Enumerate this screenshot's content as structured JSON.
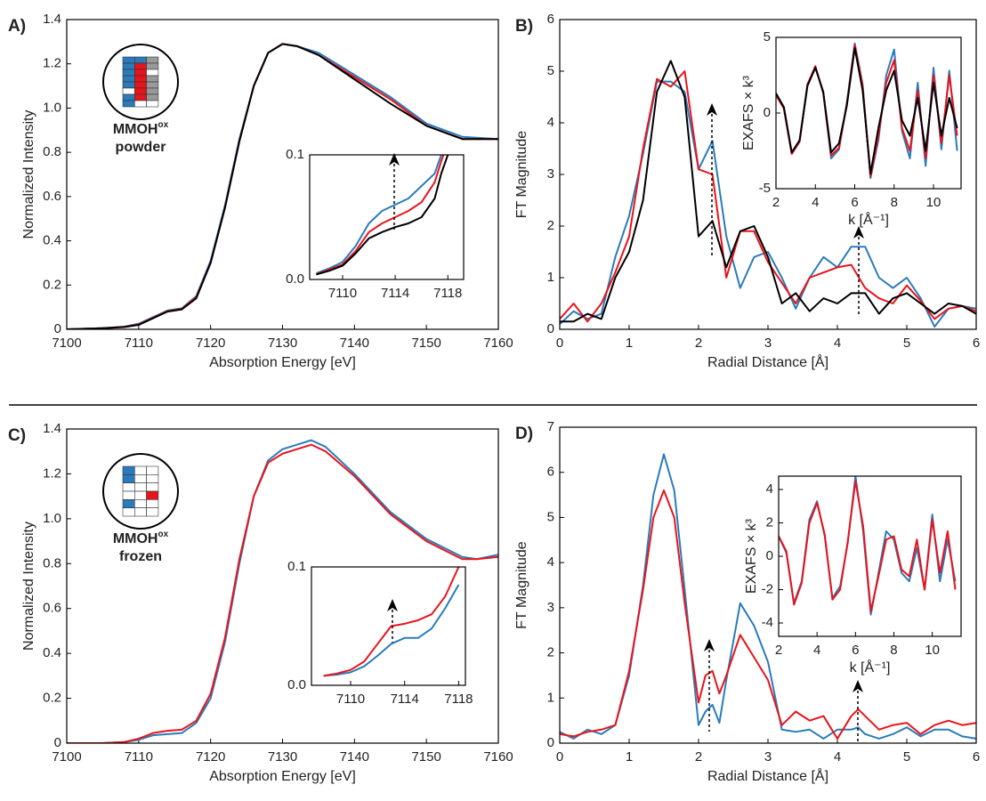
{
  "chart_data": [
    {
      "type": "line",
      "panel_label": "A)",
      "xlabel": "Absorption Energy [eV]",
      "ylabel": "Normalized Intensity",
      "annotation": {
        "name": "MMOH",
        "superscript": "ox",
        "state": "powder"
      },
      "x": [
        7100,
        7105,
        7108,
        7110,
        7112,
        7114,
        7116,
        7118,
        7120,
        7122,
        7124,
        7126,
        7128,
        7130,
        7132,
        7135,
        7140,
        7145,
        7150,
        7155,
        7160
      ],
      "series": [
        {
          "color": "#2b7bba",
          "values": [
            0,
            0.005,
            0.012,
            0.025,
            0.055,
            0.085,
            0.095,
            0.15,
            0.31,
            0.56,
            0.86,
            1.1,
            1.25,
            1.29,
            1.28,
            1.25,
            1.15,
            1.05,
            0.93,
            0.87,
            0.86
          ]
        },
        {
          "color": "#e8141c",
          "values": [
            0,
            0.005,
            0.011,
            0.022,
            0.052,
            0.082,
            0.092,
            0.145,
            0.3,
            0.55,
            0.85,
            1.1,
            1.25,
            1.29,
            1.28,
            1.24,
            1.14,
            1.04,
            0.92,
            0.86,
            0.86
          ]
        },
        {
          "color": "#000000",
          "values": [
            0,
            0.005,
            0.01,
            0.02,
            0.05,
            0.08,
            0.09,
            0.14,
            0.3,
            0.55,
            0.85,
            1.1,
            1.25,
            1.29,
            1.28,
            1.24,
            1.13,
            1.02,
            0.92,
            0.86,
            0.86
          ]
        }
      ],
      "xlim": [
        7100,
        7160
      ],
      "ylim": [
        0,
        1.4
      ],
      "xticks": [
        7100,
        7110,
        7120,
        7130,
        7140,
        7150,
        7160
      ],
      "yticks": [
        0,
        0.2,
        0.4,
        0.6,
        0.8,
        {
          "value": 1,
          "label": "1.0"
        },
        1.2,
        1.4
      ]
    },
    {
      "type": "line",
      "x": [
        7108,
        7109,
        7110,
        7111,
        7112,
        7113,
        7114,
        7115,
        7116,
        7117,
        7117.5,
        7118
      ],
      "series": [
        {
          "color": "#2b7bba",
          "values": [
            0.005,
            0.009,
            0.014,
            0.027,
            0.045,
            0.055,
            0.06,
            0.065,
            0.075,
            0.085,
            0.1,
            0.11
          ]
        },
        {
          "color": "#e8141c",
          "values": [
            0.004,
            0.008,
            0.012,
            0.023,
            0.038,
            0.045,
            0.05,
            0.055,
            0.062,
            0.078,
            0.095,
            0.11
          ]
        },
        {
          "color": "#000000",
          "values": [
            0.004,
            0.007,
            0.011,
            0.021,
            0.033,
            0.038,
            0.042,
            0.045,
            0.05,
            0.065,
            0.085,
            0.1
          ]
        }
      ],
      "xlim": [
        7107.5,
        7119.2
      ],
      "ylim": [
        0,
        0.1
      ],
      "xticks": [
        7110,
        7114,
        7118
      ],
      "yticks": [
        {
          "value": 0,
          "label": "0.0"
        },
        0.1
      ]
    },
    {
      "type": "line",
      "panel_label": "B)",
      "xlabel": "Radial Distance [Å]",
      "ylabel": "FT Magnitude",
      "x": [
        0,
        0.2,
        0.4,
        0.6,
        0.8,
        1,
        1.2,
        1.4,
        1.6,
        1.8,
        2,
        2.2,
        2.4,
        2.6,
        2.8,
        3,
        3.2,
        3.4,
        3.6,
        3.8,
        4,
        4.2,
        4.4,
        4.6,
        4.8,
        5,
        5.2,
        5.4,
        5.6,
        5.8,
        6
      ],
      "series": [
        {
          "color": "#2b7bba",
          "values": [
            0.1,
            0.35,
            0.2,
            0.3,
            1.4,
            2.2,
            3.4,
            4.8,
            4.8,
            4.6,
            3.1,
            3.65,
            1.8,
            0.8,
            1.4,
            1.5,
            1,
            0.4,
            1,
            1.4,
            1.2,
            1.6,
            1.6,
            1,
            0.8,
            1,
            0.6,
            0.05,
            0.4,
            0.45,
            0.4
          ]
        },
        {
          "color": "#e8141c",
          "values": [
            0.2,
            0.5,
            0.15,
            0.5,
            1.1,
            1.8,
            3.5,
            4.85,
            4.7,
            5,
            3.1,
            3,
            1,
            1.9,
            1.9,
            1.3,
            0.9,
            0.5,
            1,
            1.1,
            1.2,
            1.25,
            0.8,
            0.6,
            0.5,
            0.85,
            0.55,
            0.2,
            0.4,
            0.45,
            0.35
          ]
        },
        {
          "color": "#000000",
          "values": [
            0.15,
            0.15,
            0.3,
            0.2,
            1,
            1.5,
            2.5,
            4.6,
            5.2,
            4.5,
            1.8,
            2.1,
            1.2,
            1.9,
            2,
            1.4,
            0.5,
            0.7,
            0.35,
            0.6,
            0.5,
            0.7,
            0.7,
            0.3,
            0.6,
            0.7,
            0.5,
            0.3,
            0.5,
            0.45,
            0.3
          ]
        }
      ],
      "xlim": [
        0,
        6
      ],
      "ylim": [
        0,
        6
      ],
      "xticks": [
        0,
        1,
        2,
        3,
        4,
        5,
        6
      ],
      "yticks": [
        0,
        1,
        2,
        3,
        4,
        5,
        6
      ]
    },
    {
      "type": "line",
      "xlabel": "k [Å⁻¹]",
      "ylabel": "EXAFS × k³",
      "x": [
        2,
        2.4,
        2.8,
        3.2,
        3.6,
        4,
        4.4,
        4.8,
        5.2,
        5.6,
        6,
        6.4,
        6.8,
        7.2,
        7.6,
        8,
        8.4,
        8.8,
        9.2,
        9.6,
        10,
        10.4,
        10.8,
        11.2
      ],
      "series": [
        {
          "color": "#2b7bba",
          "values": [
            1.2,
            0.3,
            -2.7,
            -1.8,
            1.9,
            3,
            1.4,
            -3,
            -2.4,
            0.7,
            4.6,
            1.9,
            -4.3,
            -1.8,
            2.5,
            4.2,
            -1.2,
            -3,
            2,
            -3.5,
            3,
            -2.4,
            2.8,
            -2.5
          ]
        },
        {
          "color": "#e8141c",
          "values": [
            1.2,
            0.3,
            -2.7,
            -1.9,
            1.9,
            3.1,
            1.3,
            -2.8,
            -2.3,
            0.6,
            4.5,
            1.8,
            -4.2,
            -1.5,
            2,
            3.5,
            -1,
            -2.5,
            1.5,
            -3,
            2.5,
            -2,
            2.5,
            -1.5
          ]
        },
        {
          "color": "#000000",
          "values": [
            1.3,
            0.4,
            -2.6,
            -1.8,
            1.8,
            3,
            1.4,
            -2.6,
            -2,
            0.5,
            4.3,
            1.5,
            -4,
            -1,
            1.5,
            2.8,
            -0.5,
            -1.5,
            1,
            -2.5,
            2,
            -1.5,
            1,
            -1
          ]
        }
      ],
      "xlim": [
        2,
        11.4
      ],
      "ylim": [
        -5,
        5
      ],
      "xticks": [
        2,
        4,
        6,
        8,
        10
      ],
      "yticks": [
        -5,
        0,
        5
      ]
    },
    {
      "type": "line",
      "panel_label": "C)",
      "xlabel": "Absorption Energy [eV]",
      "ylabel": "Normalized Intensity",
      "annotation": {
        "name": "MMOH",
        "superscript": "ox",
        "state": "frozen"
      },
      "x": [
        7100,
        7105,
        7108,
        7110,
        7112,
        7114,
        7116,
        7118,
        7120,
        7122,
        7124,
        7126,
        7128,
        7130,
        7132,
        7134,
        7136,
        7140,
        7145,
        7150,
        7155,
        7157,
        7160
      ],
      "series": [
        {
          "color": "#2b7bba",
          "values": [
            0,
            0,
            0.005,
            0.015,
            0.035,
            0.04,
            0.045,
            0.09,
            0.2,
            0.45,
            0.8,
            1.1,
            1.26,
            1.31,
            1.33,
            1.35,
            1.32,
            1.2,
            1.03,
            0.91,
            0.83,
            0.82,
            0.84
          ]
        },
        {
          "color": "#e8141c",
          "values": [
            0,
            0,
            0.005,
            0.02,
            0.045,
            0.055,
            0.06,
            0.1,
            0.22,
            0.47,
            0.82,
            1.1,
            1.25,
            1.29,
            1.31,
            1.33,
            1.3,
            1.19,
            1.02,
            0.9,
            0.82,
            0.82,
            0.83
          ]
        }
      ],
      "xlim": [
        7100,
        7160
      ],
      "ylim": [
        0,
        1.4
      ],
      "xticks": [
        7100,
        7110,
        7120,
        7130,
        7140,
        7150,
        7160
      ],
      "yticks": [
        0,
        0.2,
        0.4,
        0.6,
        0.8,
        {
          "value": 1,
          "label": "1.0"
        },
        1.2,
        1.4
      ]
    },
    {
      "type": "line",
      "x": [
        7108,
        7109,
        7110,
        7111,
        7112,
        7113,
        7114,
        7115,
        7116,
        7117,
        7118
      ],
      "series": [
        {
          "color": "#2b7bba",
          "values": [
            0.008,
            0.009,
            0.011,
            0.016,
            0.025,
            0.035,
            0.04,
            0.04,
            0.048,
            0.065,
            0.085
          ]
        },
        {
          "color": "#e8141c",
          "values": [
            0.008,
            0.01,
            0.013,
            0.02,
            0.035,
            0.05,
            0.052,
            0.055,
            0.06,
            0.075,
            0.1
          ]
        }
      ],
      "xlim": [
        7107.1,
        7118.5
      ],
      "ylim": [
        0,
        0.1
      ],
      "xticks": [
        7110,
        7114,
        7118
      ],
      "yticks": [
        {
          "value": 0,
          "label": "0.0"
        },
        0.1
      ]
    },
    {
      "type": "line",
      "panel_label": "D)",
      "xlabel": "Radial Distance [Å]",
      "ylabel": "FT Magnitude",
      "x": [
        0,
        0.2,
        0.4,
        0.6,
        0.8,
        1,
        1.2,
        1.35,
        1.5,
        1.65,
        1.8,
        2,
        2.1,
        2.2,
        2.3,
        2.4,
        2.6,
        2.8,
        3,
        3.2,
        3.4,
        3.6,
        3.8,
        4,
        4.2,
        4.3,
        4.4,
        4.6,
        4.8,
        5,
        5.2,
        5.4,
        5.6,
        5.8,
        6
      ],
      "series": [
        {
          "color": "#2b7bba",
          "values": [
            0.25,
            0.1,
            0.3,
            0.2,
            0.4,
            1.5,
            3.5,
            5.5,
            6.4,
            5.6,
            3.4,
            0.4,
            0.7,
            0.85,
            0.45,
            1.4,
            3.1,
            2.6,
            1.8,
            0.3,
            0.25,
            0.3,
            0.1,
            0.3,
            0.3,
            0.35,
            0.2,
            0.1,
            0.2,
            0.35,
            0.15,
            0.3,
            0.3,
            0.15,
            0.1
          ]
        },
        {
          "color": "#e8141c",
          "values": [
            0.2,
            0.15,
            0.25,
            0.3,
            0.4,
            1.6,
            3.4,
            5,
            5.6,
            5,
            3.1,
            0.9,
            1.5,
            1.6,
            1.1,
            1.5,
            2.4,
            1.9,
            1.4,
            0.4,
            0.7,
            0.5,
            0.6,
            0.1,
            0.6,
            0.75,
            0.6,
            0.3,
            0.4,
            0.45,
            0.2,
            0.4,
            0.5,
            0.4,
            0.45
          ]
        }
      ],
      "xlim": [
        0,
        6
      ],
      "ylim": [
        0,
        7
      ],
      "xticks": [
        0,
        1,
        2,
        3,
        4,
        5,
        6
      ],
      "yticks": [
        0,
        1,
        2,
        3,
        4,
        5,
        6,
        7
      ]
    },
    {
      "type": "line",
      "xlabel": "k [Å⁻¹]",
      "ylabel": "EXAFS × k³",
      "x": [
        2,
        2.4,
        2.8,
        3.2,
        3.6,
        4,
        4.4,
        4.8,
        5.2,
        5.6,
        6,
        6.4,
        6.8,
        7.2,
        7.6,
        8,
        8.4,
        8.8,
        9.2,
        9.6,
        10,
        10.4,
        10.8,
        11.2
      ],
      "series": [
        {
          "color": "#2b7bba",
          "values": [
            1.2,
            0.2,
            -2.8,
            -1.5,
            2.2,
            3.3,
            1.2,
            -2.5,
            -1.8,
            0.8,
            4.8,
            1.5,
            -3.5,
            -1,
            1.5,
            1,
            -1,
            -1.5,
            0.5,
            -2,
            2.5,
            -1.5,
            1,
            -1.5
          ]
        },
        {
          "color": "#e8141c",
          "values": [
            1.2,
            0.3,
            -2.9,
            -1.6,
            2,
            3.2,
            1.3,
            -2.6,
            -2,
            0.9,
            4.5,
            1.8,
            -3.3,
            -1.2,
            1,
            1.2,
            -0.8,
            -1.2,
            1,
            -2,
            2.2,
            -1,
            1.5,
            -2
          ]
        }
      ],
      "xlim": [
        2,
        11.5
      ],
      "ylim": [
        -4.8,
        4.8
      ],
      "xticks": [
        2,
        4,
        6,
        8,
        10
      ],
      "yticks": [
        -4,
        -2,
        0,
        2,
        4
      ]
    }
  ]
}
